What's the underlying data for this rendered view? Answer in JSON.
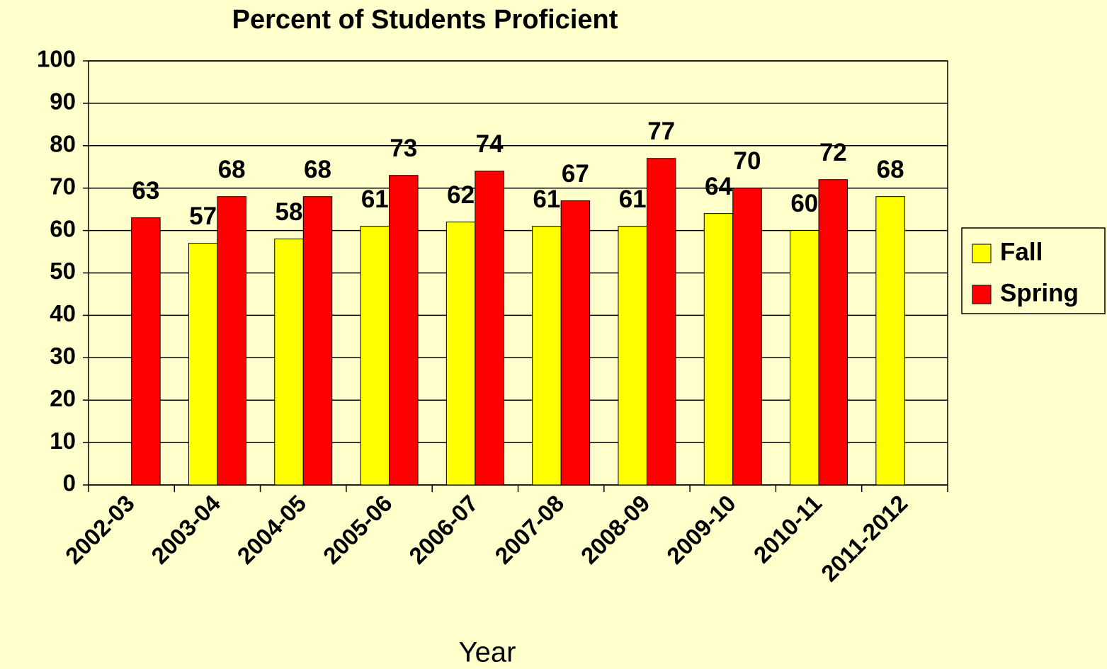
{
  "chart_data": {
    "type": "bar",
    "title": "Percent of Students Proficient",
    "x_label": "Year",
    "categories": [
      "2002-03",
      "2003-04",
      "2004-05",
      "2005-06",
      "2006-07",
      "2007-08",
      "2008-09",
      "2009-10",
      "2010-11",
      "2011-2012"
    ],
    "series": [
      {
        "name": "Fall",
        "color": "#ffff00",
        "values": [
          null,
          57,
          58,
          61,
          62,
          61,
          61,
          64,
          60,
          68
        ]
      },
      {
        "name": "Spring",
        "color": "#ff0000",
        "values": [
          63,
          68,
          68,
          73,
          74,
          67,
          77,
          70,
          72,
          null
        ]
      }
    ],
    "ylim": [
      0,
      100
    ],
    "yticks": [
      0,
      10,
      20,
      30,
      40,
      50,
      60,
      70,
      80,
      90,
      100
    ],
    "grid": true,
    "legend": "right"
  }
}
